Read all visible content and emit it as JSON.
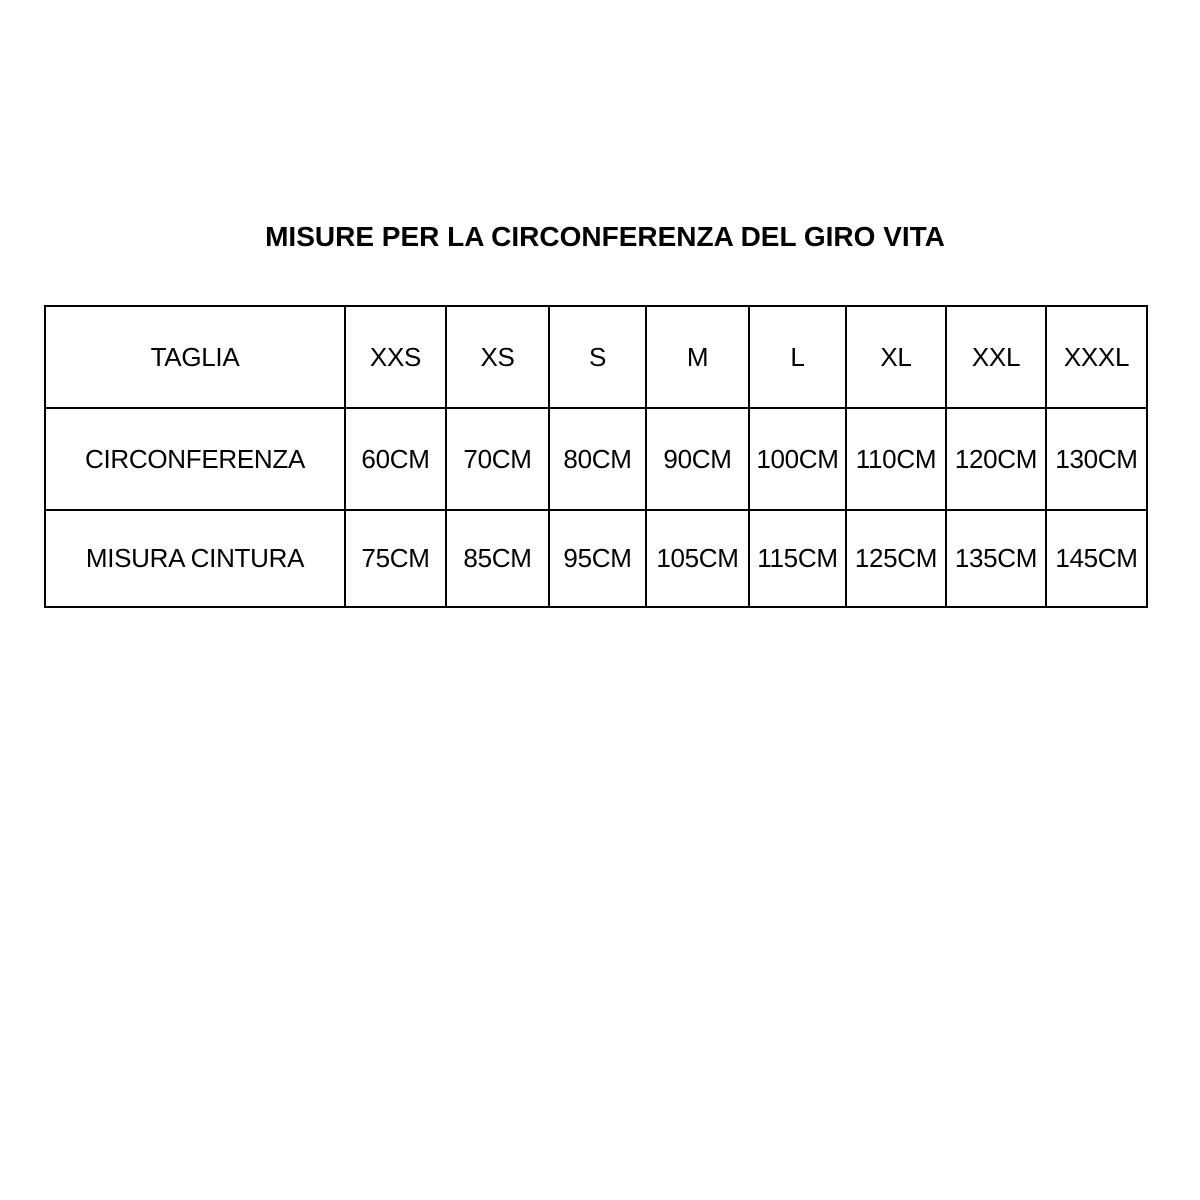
{
  "title": "MISURE PER LA CIRCONFERENZA DEL GIRO VITA",
  "table": {
    "rows": [
      {
        "label": "TAGLIA",
        "values": [
          "XXS",
          "XS",
          "S",
          "M",
          "L",
          "XL",
          "XXL",
          "XXXL"
        ]
      },
      {
        "label": "CIRCONFERENZA",
        "values": [
          "60CM",
          "70CM",
          "80CM",
          "90CM",
          "100CM",
          "110CM",
          "120CM",
          "130CM"
        ]
      },
      {
        "label": "MISURA CINTURA",
        "values": [
          "75CM",
          "85CM",
          "95CM",
          "105CM",
          "115CM",
          "125CM",
          "135CM",
          "145CM"
        ]
      }
    ]
  }
}
